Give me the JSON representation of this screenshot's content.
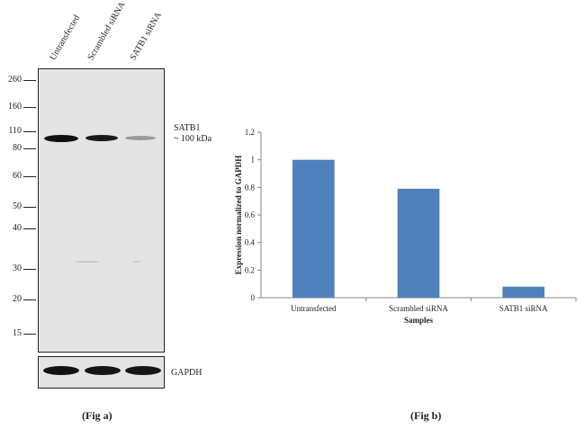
{
  "blot": {
    "lanes": [
      "Untransfected",
      "Scrambled siRNA",
      "SATB1 siRNA"
    ],
    "mw_markers": [
      "260",
      "160",
      "110",
      "80",
      "60",
      "50",
      "40",
      "30",
      "20",
      "15"
    ],
    "target_label": "SATB1",
    "target_size": "~ 100 kDa",
    "loading_label": "GAPDH",
    "target_band_intensity": [
      1.0,
      0.95,
      0.35
    ],
    "loading_band_intensity": [
      1.0,
      0.95,
      0.95
    ]
  },
  "captions": {
    "fig_a": "(Fig a)",
    "fig_b": "(Fig b)"
  },
  "chart_data": {
    "type": "bar",
    "categories": [
      "Untransfected",
      "Scrambled siRNA",
      "SATB1 siRNA"
    ],
    "values": [
      1.0,
      0.79,
      0.08
    ],
    "xlabel": "Samples",
    "ylabel": "Expression normalized to GAPDH",
    "ylim": [
      0,
      1.2
    ],
    "yticks": [
      "0",
      "0.2",
      "0.4",
      "0.6",
      "0.8",
      "1",
      "1.2"
    ],
    "bar_color": "#4f81bd",
    "grid": false
  }
}
